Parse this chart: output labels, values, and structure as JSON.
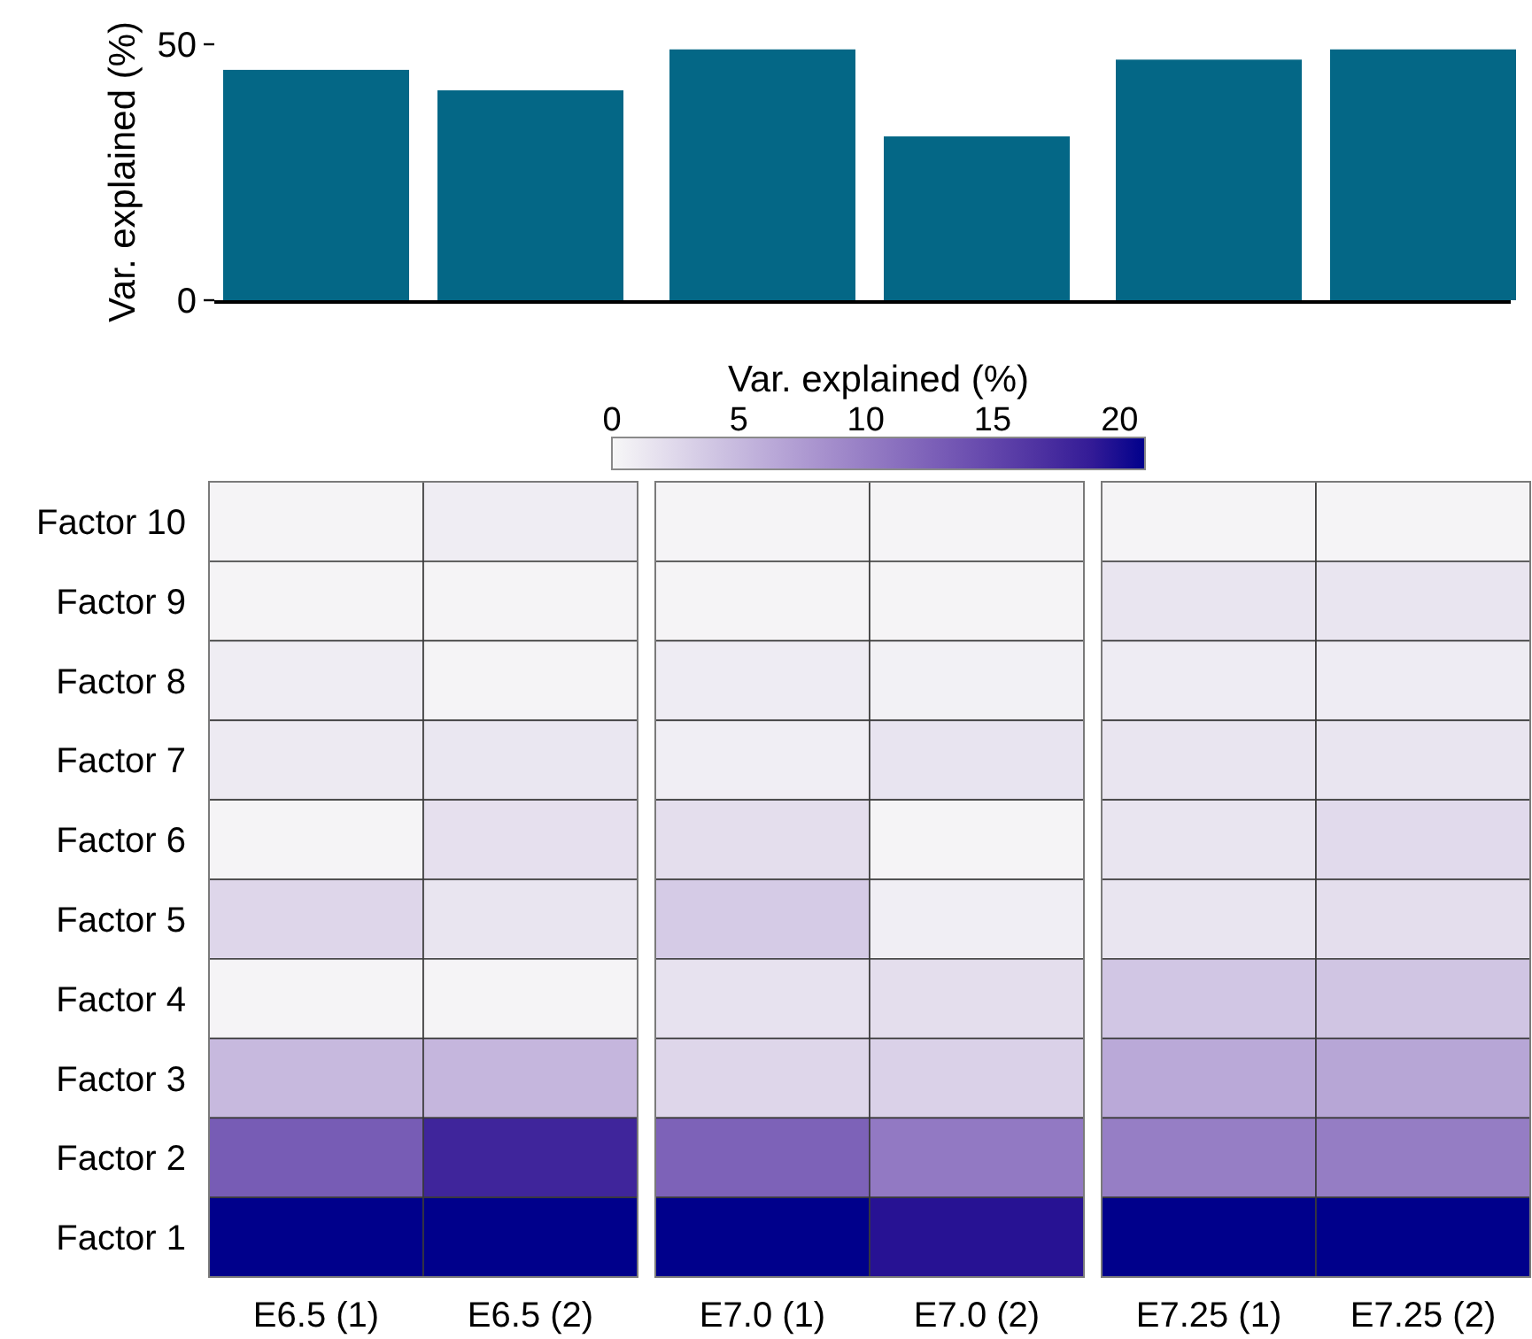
{
  "chart_data": [
    {
      "type": "bar",
      "categories": [
        null,
        null,
        null,
        null,
        null,
        null
      ],
      "values": [
        45,
        41,
        49,
        32,
        47,
        49
      ],
      "color": "#046786",
      "ylim": [
        0,
        50
      ],
      "yticks": [
        0,
        50
      ],
      "ylabel": "Var. explained (%)"
    },
    {
      "type": "heatmap",
      "categories": [
        "E6.5 (1)",
        "E6.5 (2)",
        "E7.0 (1)",
        "E7.0 (2)",
        "E7.25 (1)",
        "E7.25 (2)"
      ],
      "y_categories": [
        "Factor 10",
        "Factor 9",
        "Factor 8",
        "Factor 7",
        "Factor 6",
        "Factor 5",
        "Factor 4",
        "Factor 3",
        "Factor 2",
        "Factor 1"
      ],
      "cells": [
        [
          0.2,
          0.8,
          0.2,
          0.2,
          0.2,
          0.2
        ],
        [
          0.2,
          0.2,
          0.2,
          0.2,
          1.4,
          1.4
        ],
        [
          0.8,
          0.2,
          0.9,
          0.5,
          0.9,
          0.9
        ],
        [
          1.0,
          1.3,
          0.7,
          1.5,
          1.4,
          1.4
        ],
        [
          0.2,
          1.8,
          2.0,
          0.2,
          1.4,
          2.3
        ],
        [
          2.6,
          1.4,
          3.5,
          0.7,
          1.4,
          2.0
        ],
        [
          0.2,
          0.2,
          1.7,
          2.0,
          3.9,
          4.0
        ],
        [
          5.0,
          5.2,
          2.6,
          3.0,
          6.3,
          6.6
        ],
        [
          13,
          18,
          12.5,
          10.4,
          10,
          10.1
        ],
        [
          21,
          21,
          21,
          19.6,
          21,
          21
        ]
      ],
      "clim": [
        0,
        21
      ],
      "cticks": [
        0,
        5,
        10,
        15,
        20
      ],
      "clabel": "Var. explained (%)"
    }
  ]
}
